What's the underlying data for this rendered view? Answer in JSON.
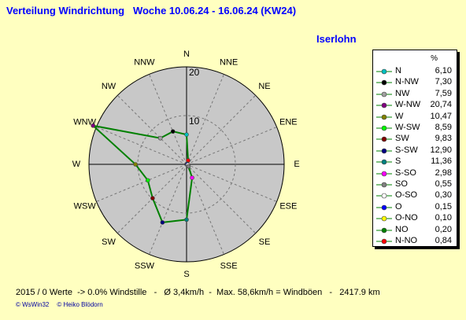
{
  "header": {
    "title": "Verteilung Windrichtung   Woche 10.06.24 - 16.06.24 (KW24)",
    "station": "Iserlohn"
  },
  "chart_data": {
    "type": "radar",
    "title": "Verteilung Windrichtung   Woche 10.06.24 - 16.06.24 (KW24)",
    "rmax": 20,
    "rings": [
      10,
      20
    ],
    "ring_labels": [
      "10",
      "20"
    ],
    "unit": "%",
    "directions": [
      "N",
      "NNE",
      "NE",
      "ENE",
      "E",
      "ESE",
      "SE",
      "SSE",
      "S",
      "SSW",
      "SW",
      "WSW",
      "W",
      "WNW",
      "NW",
      "NNW"
    ],
    "series": [
      {
        "name": "N",
        "value": 6.1,
        "color": "#00c0c0",
        "angle": 0
      },
      {
        "name": "N-NW",
        "value": 7.3,
        "color": "#000000",
        "angle": 337.5
      },
      {
        "name": "NW",
        "value": 7.59,
        "color": "#a0a0a0",
        "angle": 315
      },
      {
        "name": "W-NW",
        "value": 20.74,
        "color": "#800080",
        "angle": 292.5
      },
      {
        "name": "W",
        "value": 10.47,
        "color": "#808000",
        "angle": 270
      },
      {
        "name": "W-SW",
        "value": 8.59,
        "color": "#00ff00",
        "angle": 247.5
      },
      {
        "name": "SW",
        "value": 9.83,
        "color": "#800000",
        "angle": 225
      },
      {
        "name": "S-SW",
        "value": 12.9,
        "color": "#000080",
        "angle": 202.5
      },
      {
        "name": "S",
        "value": 11.36,
        "color": "#008080",
        "angle": 180
      },
      {
        "name": "S-SO",
        "value": 2.98,
        "color": "#ff00ff",
        "angle": 157.5
      },
      {
        "name": "SO",
        "value": 0.55,
        "color": "#808080",
        "angle": 135
      },
      {
        "name": "O-SO",
        "value": 0.3,
        "color": "#ffffff",
        "angle": 112.5
      },
      {
        "name": "O",
        "value": 0.15,
        "color": "#0000ff",
        "angle": 90
      },
      {
        "name": "O-NO",
        "value": 0.1,
        "color": "#ffff00",
        "angle": 67.5
      },
      {
        "name": "NO",
        "value": 0.2,
        "color": "#008000",
        "angle": 45
      },
      {
        "name": "N-NO",
        "value": 0.84,
        "color": "#ff0000",
        "angle": 22.5
      }
    ],
    "line_color": "#008000",
    "grid": true,
    "legend_position": "right"
  },
  "legend": {
    "header": "%",
    "values": [
      "6,10",
      "7,30",
      "7,59",
      "20,74",
      "10,47",
      "8,59",
      "9,83",
      "12,90",
      "11,36",
      "2,98",
      "0,55",
      "0,30",
      "0,15",
      "0,10",
      "0,20",
      "0,84"
    ]
  },
  "footer": {
    "stats": "2015 / 0 Werte  -> 0.0% Windstille   -   Ø 3,4km/h  -  Max. 58,6km/h = Windböen   -   2417.9 km",
    "copyright_1": "© WsWin32",
    "copyright_2": "© Heiko Blödorn"
  }
}
